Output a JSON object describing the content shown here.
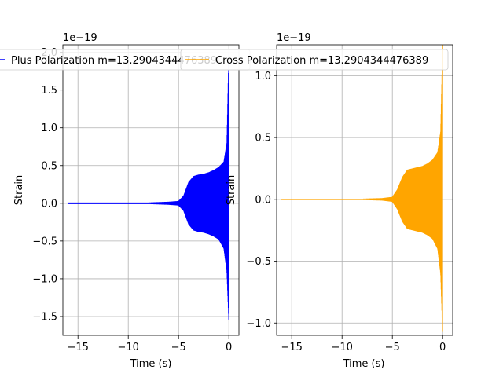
{
  "chart_data": [
    {
      "type": "line",
      "xlabel": "Time (s)",
      "ylabel": "Strain",
      "offset_text": "1e−19",
      "xlim": [
        -16.5,
        1.0
      ],
      "ylim": [
        -1.75,
        2.1
      ],
      "xticks": [
        -15,
        -10,
        -5,
        0
      ],
      "xtick_labels": [
        "−15",
        "−10",
        "−5",
        "0"
      ],
      "yticks": [
        -1.5,
        -1.0,
        -0.5,
        0.0,
        0.5,
        1.0,
        1.5,
        2.0
      ],
      "ytick_labels": [
        "−1.5",
        "−1.0",
        "−0.5",
        "0.0",
        "0.5",
        "1.0",
        "1.5",
        "2.0"
      ],
      "grid": true,
      "legend_position": "upper-left",
      "series": [
        {
          "name": "Plus Polarization m=13.2904344476389",
          "color": "#0000ff",
          "envelope_x": [
            -16,
            -15,
            -12,
            -8,
            -6,
            -5,
            -4.5,
            -4,
            -3.5,
            -3,
            -2.5,
            -2,
            -1.5,
            -1,
            -0.5,
            -0.2,
            0
          ],
          "envelope_upper": [
            0.01,
            0.01,
            0.01,
            0.01,
            0.02,
            0.03,
            0.1,
            0.28,
            0.36,
            0.38,
            0.39,
            0.41,
            0.44,
            0.48,
            0.55,
            0.8,
            2.0
          ],
          "envelope_lower": [
            -0.01,
            -0.01,
            -0.01,
            -0.01,
            -0.02,
            -0.03,
            -0.1,
            -0.28,
            -0.36,
            -0.38,
            -0.39,
            -0.41,
            -0.44,
            -0.48,
            -0.6,
            -0.9,
            -1.58
          ]
        }
      ]
    },
    {
      "type": "line",
      "xlabel": "Time (s)",
      "ylabel": "Strain",
      "offset_text": "1e−19",
      "xlim": [
        -16.5,
        1.0
      ],
      "ylim": [
        -1.1,
        1.25
      ],
      "xticks": [
        -15,
        -10,
        -5,
        0
      ],
      "xtick_labels": [
        "−15",
        "−10",
        "−5",
        "0"
      ],
      "yticks": [
        -1.0,
        -0.5,
        0.0,
        0.5,
        1.0
      ],
      "ytick_labels": [
        "−1.0",
        "−0.5",
        "0.0",
        "0.5",
        "1.0"
      ],
      "grid": true,
      "legend_position": "upper-left",
      "series": [
        {
          "name": "Cross Polarization m=13.2904344476389",
          "color": "#ffa500",
          "envelope_x": [
            -16,
            -15,
            -12,
            -8,
            -6,
            -5,
            -4.5,
            -4,
            -3.5,
            -3,
            -2.5,
            -2,
            -1.5,
            -1,
            -0.5,
            -0.2,
            0
          ],
          "envelope_upper": [
            0.005,
            0.005,
            0.005,
            0.005,
            0.01,
            0.02,
            0.08,
            0.18,
            0.24,
            0.25,
            0.26,
            0.27,
            0.29,
            0.32,
            0.38,
            0.55,
            1.25
          ],
          "envelope_lower": [
            -0.005,
            -0.005,
            -0.005,
            -0.005,
            -0.01,
            -0.02,
            -0.08,
            -0.18,
            -0.24,
            -0.25,
            -0.26,
            -0.27,
            -0.29,
            -0.32,
            -0.4,
            -0.6,
            -1.1
          ]
        }
      ]
    }
  ]
}
